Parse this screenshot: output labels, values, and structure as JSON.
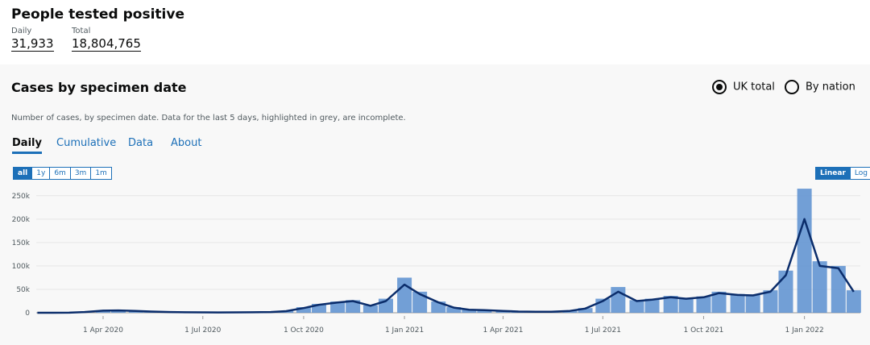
{
  "header": {
    "title": "People tested positive",
    "daily_label": "Daily",
    "daily_value": "31,933",
    "total_label": "Total",
    "total_value": "18,804,765"
  },
  "card": {
    "title": "Cases by specimen date",
    "options": [
      "UK total",
      "By nation"
    ],
    "description": "Number of cases, by specimen date. Data for the last 5 days, highlighted in grey, are incomplete.",
    "tabs": [
      "Daily",
      "Cumulative",
      "Data",
      "About"
    ],
    "ranges": [
      "all",
      "1y",
      "6m",
      "3m",
      "1m"
    ],
    "scales": [
      "Linear",
      "Log"
    ]
  },
  "chart_data": {
    "type": "bar-line",
    "x": [
      "2020-02-01",
      "2020-02-15",
      "2020-03-01",
      "2020-03-15",
      "2020-04-01",
      "2020-04-15",
      "2020-05-01",
      "2020-05-15",
      "2020-06-01",
      "2020-06-15",
      "2020-07-01",
      "2020-07-15",
      "2020-08-01",
      "2020-08-15",
      "2020-09-01",
      "2020-09-15",
      "2020-10-01",
      "2020-10-15",
      "2020-11-01",
      "2020-11-15",
      "2020-12-01",
      "2020-12-15",
      "2021-01-01",
      "2021-01-15",
      "2021-02-01",
      "2021-02-15",
      "2021-03-01",
      "2021-03-15",
      "2021-04-01",
      "2021-04-15",
      "2021-05-01",
      "2021-05-15",
      "2021-06-01",
      "2021-06-15",
      "2021-07-01",
      "2021-07-15",
      "2021-08-01",
      "2021-08-15",
      "2021-09-01",
      "2021-09-15",
      "2021-10-01",
      "2021-10-15",
      "2021-11-01",
      "2021-11-15",
      "2021-12-01",
      "2021-12-15",
      "2022-01-01",
      "2022-01-15",
      "2022-02-01",
      "2022-02-15"
    ],
    "series": [
      {
        "color": "#5b8fd0",
        "values": [
          0,
          0,
          200,
          2000,
          5000,
          4800,
          3800,
          2400,
          1400,
          1000,
          800,
          700,
          900,
          1100,
          1700,
          4000,
          12000,
          19000,
          24000,
          27000,
          16000,
          30000,
          75000,
          45000,
          24000,
          12000,
          7000,
          5800,
          4200,
          2600,
          2100,
          2400,
          4500,
          10000,
          30000,
          55000,
          27000,
          30000,
          36000,
          32000,
          35000,
          45000,
          40000,
          39000,
          48000,
          90000,
          265000,
          110000,
          100000,
          48000
        ]
      },
      {
        "color": "#0b2d6b",
        "values": [
          0,
          0,
          100,
          1500,
          4500,
          5000,
          4000,
          2500,
          1500,
          1000,
          800,
          700,
          800,
          1000,
          1500,
          3500,
          10000,
          17000,
          22000,
          25000,
          15000,
          25000,
          60000,
          40000,
          22000,
          11000,
          6500,
          5500,
          4000,
          2500,
          2000,
          2200,
          4000,
          9000,
          25000,
          45000,
          25000,
          28000,
          33000,
          30000,
          33000,
          42000,
          38000,
          37000,
          45000,
          80000,
          200000,
          100000,
          95000,
          45000
        ]
      }
    ],
    "xlim": [
      "2020-01-31",
      "2022-02-21"
    ],
    "xticks": [
      {
        "value": "2020-04-01",
        "label": "1 Apr 2020"
      },
      {
        "value": "2020-07-01",
        "label": "1 Jul 2020"
      },
      {
        "value": "2020-10-01",
        "label": "1 Oct 2020"
      },
      {
        "value": "2021-01-01",
        "label": "1 Jan 2021"
      },
      {
        "value": "2021-04-01",
        "label": "1 Apr 2021"
      },
      {
        "value": "2021-07-01",
        "label": "1 Jul 2021"
      },
      {
        "value": "2021-10-01",
        "label": "1 Oct 2021"
      },
      {
        "value": "2022-01-01",
        "label": "1 Jan 2022"
      }
    ],
    "ylim": [
      0,
      272000
    ],
    "yticks": [
      0,
      {
        "value": 50000,
        "label": "50k"
      },
      {
        "value": 100000,
        "label": "100k"
      },
      {
        "value": 150000,
        "label": "150k"
      },
      {
        "value": 200000,
        "label": "200k"
      },
      {
        "value": 250000,
        "label": "250k"
      }
    ],
    "grid": true
  }
}
